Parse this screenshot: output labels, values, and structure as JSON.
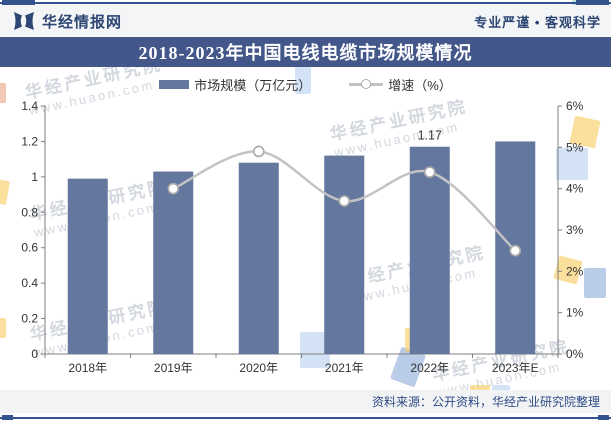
{
  "header": {
    "brand": "华经情报网",
    "tagline": "专业严谨 • 客观科学"
  },
  "title": "2018-2023年中国电线电缆市场规模情况",
  "legend": [
    {
      "label": "市场规模（万亿元）",
      "type": "bar"
    },
    {
      "label": "增速（%）",
      "type": "line"
    }
  ],
  "footer": {
    "source": "资料来源：公开资料，华经产业研究院整理"
  },
  "watermark": {
    "text": "华经产业研究院",
    "url": "www.huaon.com"
  },
  "colors": {
    "brand_navy": "#2D4673",
    "rule": "#35538F",
    "title_bar_bg": "#44578B",
    "bar_fill": "#64779E",
    "growth_line": "#C3C3C3",
    "marker_stroke": "#ABABAB",
    "axis": "#7F7F7F",
    "tick_text": "#333333",
    "accent_yellow": "#F5C64B",
    "accent_lightblue": "#AECBEC",
    "accent_blue": "#7FA3D6",
    "accent_teal": "#7FCDC4",
    "accent_orange": "#E89B77"
  },
  "chart_data": {
    "type": "bar",
    "categories": [
      "2018年",
      "2019年",
      "2020年",
      "2021年",
      "2022年",
      "2023年E"
    ],
    "series": [
      {
        "name": "市场规模（万亿元）",
        "type": "bar",
        "axis": "left",
        "values": [
          0.99,
          1.03,
          1.08,
          1.12,
          1.17,
          1.2
        ]
      },
      {
        "name": "增速（%）",
        "type": "line",
        "axis": "right",
        "values": [
          null,
          4.0,
          4.9,
          3.7,
          4.4,
          2.5
        ]
      }
    ],
    "annotations": [
      {
        "category": "2022年",
        "text": "1.17"
      }
    ],
    "title": "2018-2023年中国电线电缆市场规模情况",
    "xlabel": "",
    "ylabel_left": "市场规模（万亿元）",
    "ylabel_right": "增速（%）",
    "left_axis": {
      "min": 0,
      "max": 1.4,
      "step": 0.2
    },
    "right_axis": {
      "min": 0,
      "max": 6,
      "step": 1,
      "suffix": "%"
    },
    "grid": false,
    "legend_position": "top"
  }
}
